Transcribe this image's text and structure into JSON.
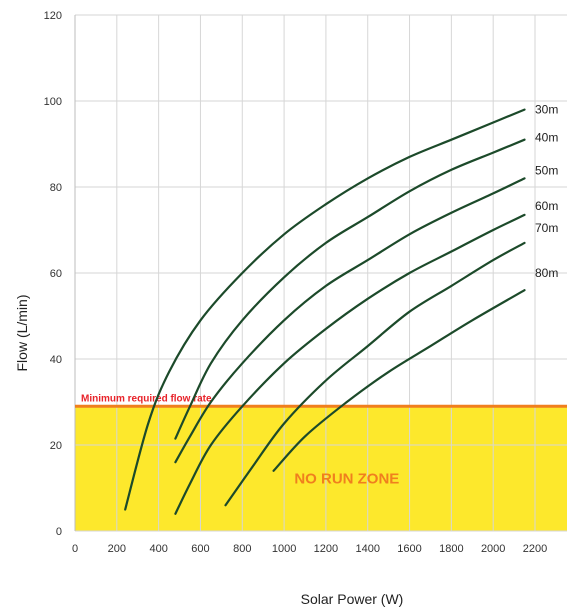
{
  "chart_data": {
    "type": "line",
    "xlabel": "Solar Power (W)",
    "ylabel": "Flow (L/min)",
    "xlim": [
      0,
      2300
    ],
    "ylim": [
      0,
      120
    ],
    "x_ticks": [
      0,
      200,
      400,
      600,
      800,
      1000,
      1200,
      1400,
      1600,
      1800,
      2000,
      2200
    ],
    "y_ticks": [
      0,
      20,
      40,
      60,
      80,
      100,
      120
    ],
    "grid": true,
    "threshold": {
      "label": "Minimum required flow rate",
      "value": 29,
      "color": "#f07f1e",
      "label_color": "#e8232a"
    },
    "zone": {
      "label": "NO RUN ZONE",
      "from": 0,
      "to": 29,
      "color": "#fde82c"
    },
    "line_color": "#1c4a2a",
    "series": [
      {
        "name": "30m",
        "x": [
          240,
          350,
          450,
          600,
          800,
          1000,
          1200,
          1400,
          1600,
          1800,
          2000,
          2150
        ],
        "y": [
          5,
          25,
          37,
          49,
          60,
          69,
          76,
          82,
          87,
          91,
          95,
          98
        ]
      },
      {
        "name": "40m",
        "x": [
          480,
          550,
          650,
          800,
          1000,
          1200,
          1400,
          1600,
          1800,
          2000,
          2150
        ],
        "y": [
          21.5,
          29,
          39,
          49,
          59,
          67,
          73,
          79,
          84,
          88,
          91
        ]
      },
      {
        "name": "50m",
        "x": [
          480,
          550,
          650,
          800,
          1000,
          1200,
          1400,
          1600,
          1800,
          2000,
          2150
        ],
        "y": [
          16,
          22,
          30,
          39,
          49,
          57,
          63,
          69,
          74,
          78.5,
          82
        ]
      },
      {
        "name": "60m",
        "x": [
          480,
          550,
          650,
          800,
          1000,
          1200,
          1400,
          1600,
          1800,
          2000,
          2150
        ],
        "y": [
          4,
          11,
          20,
          29,
          39,
          47,
          54,
          60,
          65,
          70,
          73.5
        ]
      },
      {
        "name": "70m",
        "x": [
          720,
          850,
          1000,
          1200,
          1400,
          1600,
          1800,
          2000,
          2150
        ],
        "y": [
          6,
          15,
          25,
          35,
          43,
          51,
          57,
          63,
          67
        ]
      },
      {
        "name": "80m",
        "x": [
          950,
          1100,
          1300,
          1500,
          1700,
          1900,
          2150
        ],
        "y": [
          14,
          22,
          30,
          37,
          43,
          49,
          56
        ]
      }
    ]
  }
}
